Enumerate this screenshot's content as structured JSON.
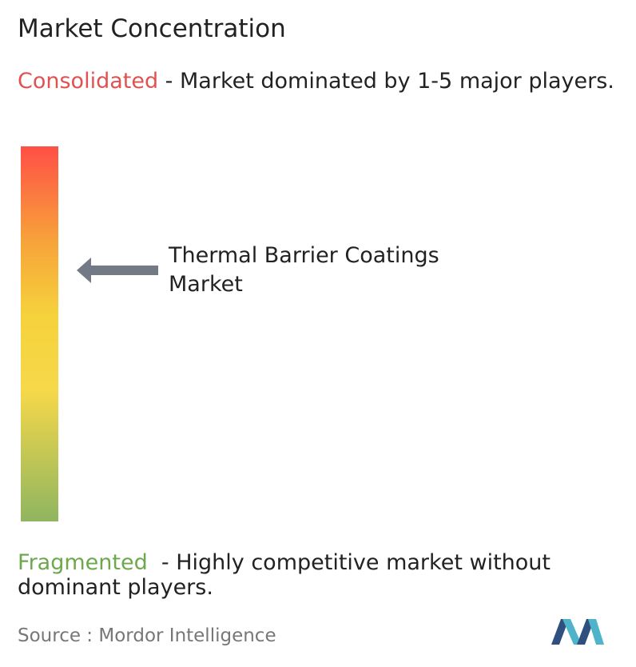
{
  "title": "Market Concentration",
  "consolidated": {
    "label": "Consolidated",
    "text": " - Market dominated by 1-5 major players."
  },
  "marker": {
    "label": "Thermal Barrier Coatings Market"
  },
  "fragmented": {
    "label": "Fragmented",
    "text": "  - Highly competitive market without dominant players."
  },
  "source": {
    "prefix": "Source :",
    "name": "Mordor Intelligence"
  }
}
